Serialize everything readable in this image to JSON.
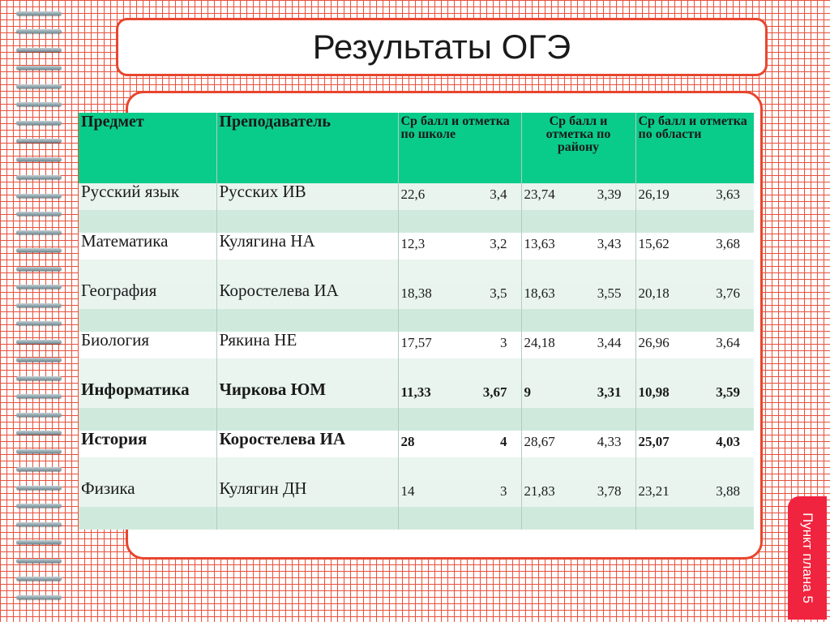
{
  "title": "Результаты ОГЭ",
  "headers": {
    "subject": "Предмет",
    "teacher": "Преподаватель",
    "school": "Ср балл и отметка по школе",
    "district": "Ср балл и отметка по району",
    "region": "Ср балл и отметка по области"
  },
  "rows": [
    {
      "subject": "Русский язык",
      "teacher": "Русских ИВ",
      "school_score": "22,6",
      "school_grade": "3,4",
      "district_score": "23,74",
      "district_grade": "3,39",
      "region_score": "26,19",
      "region_grade": "3,63"
    },
    {
      "subject": "Математика",
      "teacher": "Кулягина НА",
      "school_score": "12,3",
      "school_grade": "3,2",
      "district_score": "13,63",
      "district_grade": "3,43",
      "region_score": "15,62",
      "region_grade": "3,68"
    },
    {
      "subject": "География",
      "teacher": "Коростелева ИА",
      "school_score": "18,38",
      "school_grade": "3,5",
      "district_score": "18,63",
      "district_grade": "3,55",
      "region_score": "20,18",
      "region_grade": "3,76"
    },
    {
      "subject": "Биология",
      "teacher": "Рякина НЕ",
      "school_score": "17,57",
      "school_grade": "3",
      "district_score": "24,18",
      "district_grade": "3,44",
      "region_score": "26,96",
      "region_grade": "3,64"
    },
    {
      "subject": "Информатика",
      "teacher": "Чиркова ЮМ",
      "school_score": "11,33",
      "school_grade": "3,67",
      "district_score": "9",
      "district_grade": "3,31",
      "region_score": "10,98",
      "region_grade": "3,59"
    },
    {
      "subject": "История",
      "teacher": "Коростелева ИА",
      "school_score": "28",
      "school_grade": "4",
      "district_score": "28,67",
      "district_grade": "4,33",
      "region_score": "25,07",
      "region_grade": "4,03"
    },
    {
      "subject": "Физика",
      "teacher": "Кулягин ДН",
      "school_score": "14",
      "school_grade": "3",
      "district_score": "21,83",
      "district_grade": "3,78",
      "region_score": "23,21",
      "region_grade": "3,88"
    }
  ],
  "side_tab": "Пункт плана 5",
  "colors": {
    "accent": "#e8462e",
    "header_bg": "#0acc8a",
    "tab_bg": "#f0243e"
  }
}
